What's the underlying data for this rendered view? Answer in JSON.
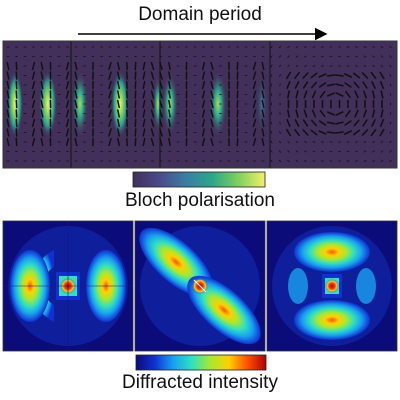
{
  "header": {
    "title": "Domain period"
  },
  "bloch": {
    "label": "Bloch polarisation",
    "panels": 4,
    "colormap": [
      "#42305a",
      "#4b4a8c",
      "#3a7ea3",
      "#2aa88a",
      "#7fd15a",
      "#f5ef6a"
    ]
  },
  "diffraction": {
    "label": "Diffracted intensity",
    "panels": 3,
    "colormap": [
      "#0b0b7a",
      "#1030d0",
      "#18a0f0",
      "#30e0c0",
      "#a8e830",
      "#ffd000",
      "#ff5000",
      "#b00000"
    ]
  }
}
